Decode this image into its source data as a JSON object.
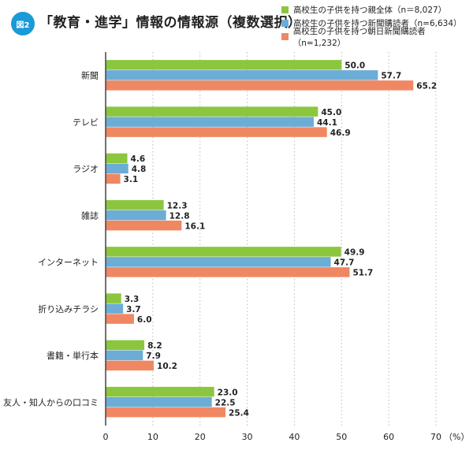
{
  "figure_label": "図2",
  "colors": {
    "badge": "#1a9ad7",
    "green": "#8cc63e",
    "blue": "#6badd6",
    "orange": "#f08763",
    "axis": "#444444",
    "grid": "#bbbbbb"
  },
  "chart_data": {
    "type": "bar",
    "orientation": "horizontal",
    "title": "「教育・進学」情報の情報源（複数選択）",
    "categories": [
      "新聞",
      "テレビ",
      "ラジオ",
      "雑誌",
      "インターネット",
      "折り込みチラシ",
      "書籍・単行本",
      "友人・知人からの口コミ"
    ],
    "series": [
      {
        "name": "高校生の子供を持つ親全体（n＝8,027）",
        "color": "#8cc63e",
        "values": [
          50.0,
          45.0,
          4.6,
          12.3,
          49.9,
          3.3,
          8.2,
          23.0
        ]
      },
      {
        "name": "高校生の子供を持つ新聞購読者（n=6,634）",
        "color": "#6badd6",
        "values": [
          57.7,
          44.1,
          4.8,
          12.8,
          47.7,
          3.7,
          7.9,
          22.5
        ]
      },
      {
        "name": "高校生の子供を持つ朝日新聞購読者（n=1,232）",
        "color": "#f08763",
        "values": [
          65.2,
          46.9,
          3.1,
          16.1,
          51.7,
          6.0,
          10.2,
          25.4
        ]
      }
    ],
    "xlim": [
      0,
      70
    ],
    "xticks": [
      "0",
      "10",
      "20",
      "30",
      "40",
      "50",
      "60",
      "70"
    ],
    "xunit": "（%）",
    "grid": "vertical dotted",
    "legend_placement": "top-right",
    "data_labels": true
  }
}
